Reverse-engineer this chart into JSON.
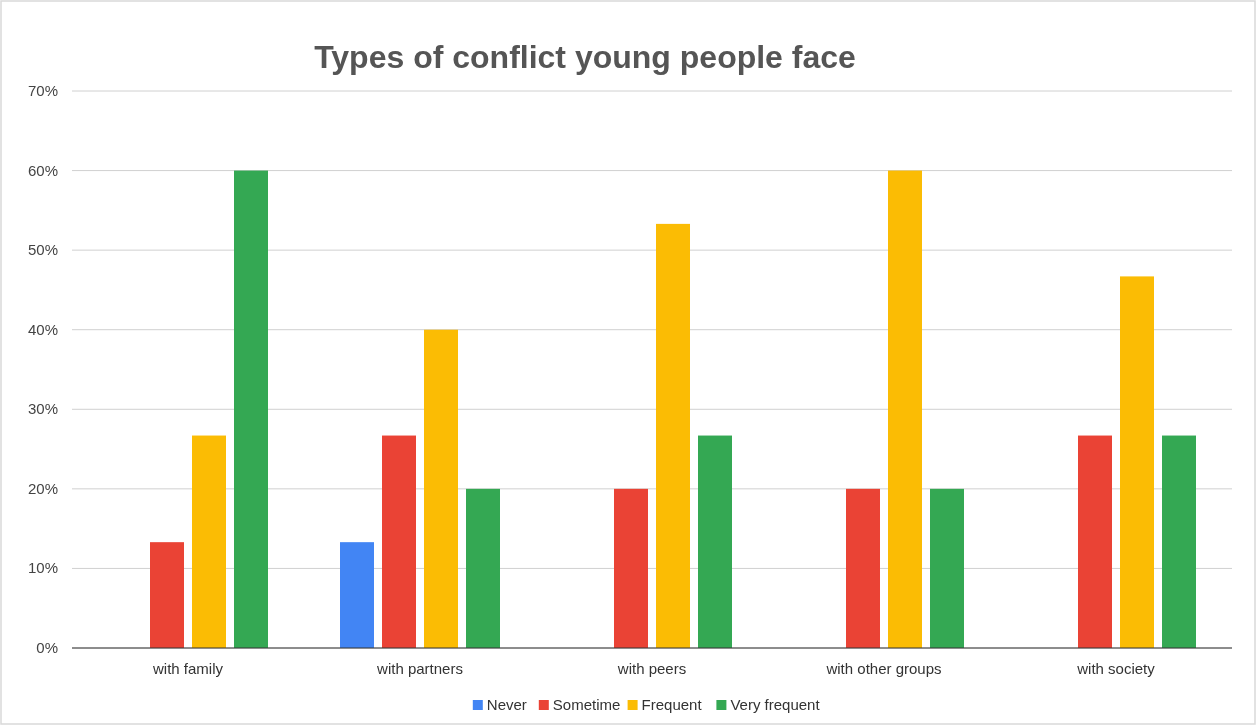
{
  "chart_data": {
    "type": "bar",
    "title": "Types of conflict young people face",
    "categories": [
      "with family",
      "with partners",
      "with peers",
      "with other groups",
      "with society"
    ],
    "series": [
      {
        "name": "Never",
        "color": "#4285f4",
        "values": [
          0,
          13.3,
          0,
          0,
          0
        ]
      },
      {
        "name": "Sometime",
        "color": "#ea4335",
        "values": [
          13.3,
          26.7,
          20,
          20,
          26.7
        ]
      },
      {
        "name": "Frequent",
        "color": "#fbbc04",
        "values": [
          26.7,
          40,
          53.3,
          60,
          46.7
        ]
      },
      {
        "name": "Very frequent",
        "color": "#34a853",
        "values": [
          60,
          20,
          26.7,
          20,
          26.7
        ]
      }
    ],
    "ylim": [
      0,
      70
    ],
    "yticks": [
      {
        "value": 0,
        "label": "0%"
      },
      {
        "value": 10,
        "label": "10%"
      },
      {
        "value": 20,
        "label": "20%"
      },
      {
        "value": 30,
        "label": "30%"
      },
      {
        "value": 40,
        "label": "40%"
      },
      {
        "value": 50,
        "label": "50%"
      },
      {
        "value": 60,
        "label": "60%"
      },
      {
        "value": 70,
        "label": "70%"
      }
    ],
    "grid": "y",
    "legend": "bottom"
  }
}
